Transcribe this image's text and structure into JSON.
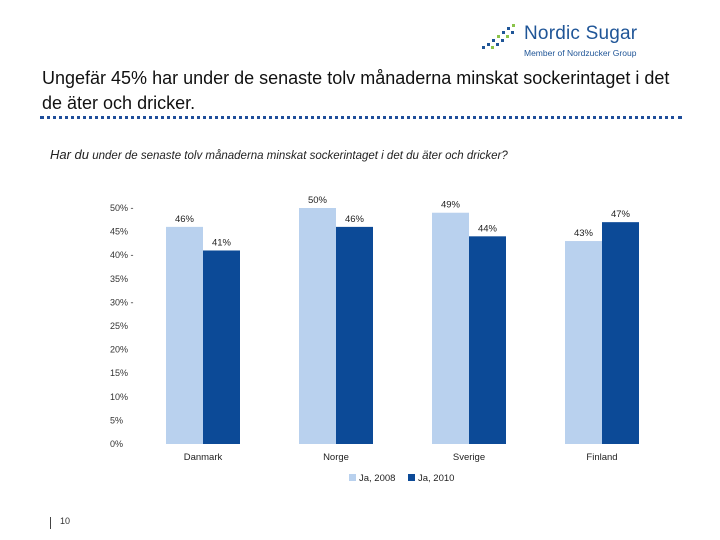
{
  "logo": {
    "name": "Nordic Sugar",
    "subtitle": "Member of Nordzucker Group"
  },
  "slide": {
    "title": "Ungefär 45% har under de senaste tolv månaderna minskat sockerintaget i det de äter och dricker.",
    "question_lead": "Har du",
    "question_rest": "under de senaste tolv månaderna minskat sockerintaget i det du äter och dricker?",
    "page_number": "10"
  },
  "colors": {
    "series_2008": "#b9d1ee",
    "series_2010": "#0c4a97",
    "accent": "#1f5597"
  },
  "chart_data": {
    "type": "bar",
    "title": "",
    "xlabel": "",
    "ylabel": "",
    "categories": [
      "Danmark",
      "Norge",
      "Sverige",
      "Finland"
    ],
    "series": [
      {
        "name": "Ja, 2008",
        "values": [
          46,
          50,
          49,
          43
        ],
        "labels": [
          "46%",
          "50%",
          "49%",
          "43%"
        ]
      },
      {
        "name": "Ja, 2010",
        "values": [
          41,
          46,
          44,
          47
        ],
        "labels": [
          "41%",
          "46%",
          "44%",
          "47%"
        ]
      }
    ],
    "y_ticks": [
      "50% -",
      "45%",
      "40% -",
      "35%",
      "30% -",
      "25%",
      "20%",
      "15%",
      "10%",
      "5%",
      "0%"
    ],
    "y_tick_values": [
      50,
      45,
      40,
      35,
      30,
      25,
      20,
      15,
      10,
      5,
      0
    ],
    "ylim": [
      0,
      50
    ],
    "grid": false,
    "legend_position": "bottom-center"
  }
}
